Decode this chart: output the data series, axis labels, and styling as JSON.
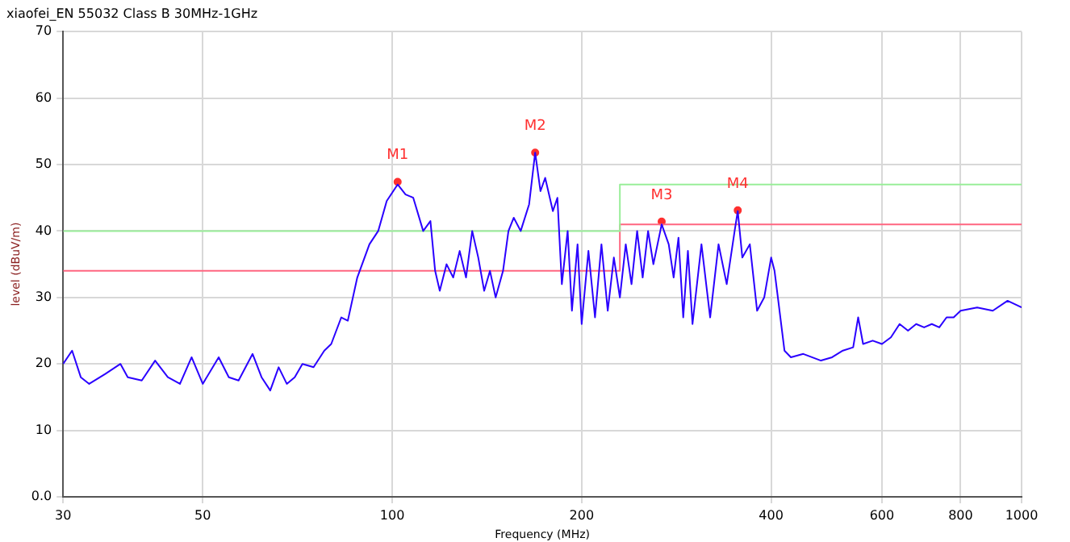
{
  "chart_data": {
    "type": "line",
    "title": "xiaofei_EN 55032 Class B 30MHz-1GHz",
    "xlabel": "Frequency (MHz)",
    "ylabel": "level (dBuV/m)",
    "log": "x",
    "grid": true,
    "legend": false,
    "marker": "none",
    "line_style": "solid",
    "xlim": [
      30,
      1000
    ],
    "xticks": [
      30,
      50,
      100,
      200,
      400,
      600,
      800,
      1000
    ],
    "ylim": [
      0,
      70
    ],
    "yticks": [
      {
        "value": 0,
        "label": "0.0"
      },
      10,
      20,
      30,
      40,
      50,
      60,
      70
    ],
    "series": [
      {
        "color": "#2a00ff",
        "x": [
          30,
          31,
          32,
          33,
          35,
          37,
          38,
          40,
          42,
          44,
          46,
          48,
          50,
          53,
          55,
          57,
          60,
          62,
          64,
          66,
          68,
          70,
          72,
          75,
          78,
          80,
          83,
          85,
          88,
          92,
          95,
          98,
          102,
          105,
          108,
          112,
          115,
          117,
          119,
          122,
          125,
          128,
          131,
          134,
          137,
          140,
          143,
          146,
          150,
          153,
          156,
          160,
          165,
          168.7,
          172,
          175,
          180,
          183,
          186,
          190,
          193,
          197,
          200,
          205,
          210,
          215,
          220,
          225,
          230,
          235,
          240,
          245,
          250,
          255,
          260,
          268,
          275,
          280,
          285,
          290,
          295,
          300,
          310,
          320,
          330,
          340,
          350,
          354,
          360,
          370,
          380,
          390,
          400,
          405,
          410,
          420,
          430,
          450,
          480,
          500,
          520,
          540,
          550,
          560,
          580,
          600,
          620,
          640,
          660,
          680,
          700,
          720,
          740,
          760,
          780,
          800,
          850,
          900,
          950,
          1000
        ],
        "values": [
          20,
          22,
          18,
          17,
          18.5,
          20,
          18,
          17.5,
          20.5,
          18,
          17,
          21,
          17,
          21,
          18,
          17.5,
          21.5,
          18,
          16,
          19.5,
          17,
          18,
          20,
          19.5,
          22,
          23,
          27,
          26.5,
          33,
          38,
          40,
          44.5,
          47,
          45.5,
          45,
          40,
          41.5,
          34,
          31,
          35,
          33,
          37,
          33,
          40,
          36,
          31,
          34,
          30,
          34,
          40,
          42,
          40,
          44,
          51.8,
          46,
          48,
          43,
          45,
          32,
          40,
          28,
          38,
          26,
          37,
          27,
          38,
          28,
          36,
          30,
          38,
          32,
          40,
          33,
          40,
          35,
          41,
          38,
          33,
          39,
          27,
          37,
          26,
          38,
          27,
          38,
          32,
          40,
          43,
          36,
          38,
          28,
          30,
          36,
          34,
          30,
          22,
          21,
          21.5,
          20.5,
          21,
          22,
          22.5,
          27,
          23,
          23.5,
          23,
          24,
          26,
          25,
          26,
          25.5,
          26,
          25.5,
          27,
          27,
          28,
          28.5,
          28,
          29.5,
          28.5
        ]
      },
      {
        "color": "#99ee99",
        "x": [
          30,
          230,
          230,
          1000
        ],
        "values": [
          40,
          40,
          47,
          47
        ]
      },
      {
        "color": "#ff6680",
        "x": [
          30,
          230,
          230,
          1000
        ],
        "values": [
          34,
          34,
          41,
          41
        ]
      },
      {
        "type": "scatter",
        "marker": "circle",
        "color": "#ff3030",
        "x": [
          102,
          168.7,
          268,
          354
        ],
        "values": [
          47.4,
          51.8,
          41.4,
          43.1
        ]
      }
    ],
    "annotations": [
      {
        "text": "M1",
        "x": 102,
        "y": 47.4
      },
      {
        "text": "M2",
        "x": 168.7,
        "y": 51.8
      },
      {
        "text": "M3",
        "x": 268,
        "y": 41.4
      },
      {
        "text": "M4",
        "x": 354,
        "y": 43.1
      }
    ]
  }
}
